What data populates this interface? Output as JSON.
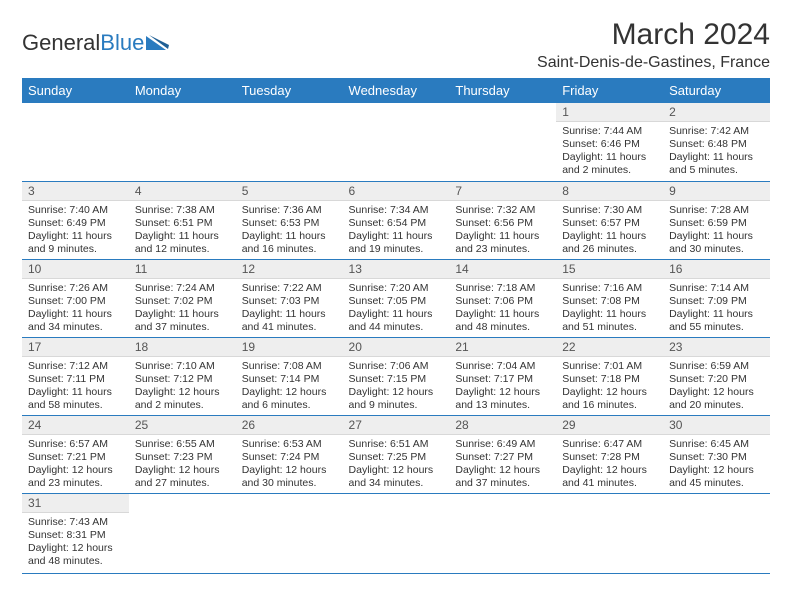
{
  "logo": {
    "general": "General",
    "blue": "Blue"
  },
  "header": {
    "month_title": "March 2024",
    "location": "Saint-Denis-de-Gastines, France"
  },
  "colors": {
    "header_bg": "#2a7bbf",
    "header_text": "#ffffff",
    "daynum_bg": "#eeeeee",
    "cell_border": "#2a7bbf",
    "text": "#333333"
  },
  "typography": {
    "title_fontsize_pt": 22,
    "location_fontsize_pt": 12,
    "dayhead_fontsize_pt": 10,
    "cell_fontsize_pt": 8
  },
  "calendar": {
    "type": "table",
    "day_headers": [
      "Sunday",
      "Monday",
      "Tuesday",
      "Wednesday",
      "Thursday",
      "Friday",
      "Saturday"
    ],
    "weeks": [
      [
        null,
        null,
        null,
        null,
        null,
        {
          "n": "1",
          "sunrise": "7:44 AM",
          "sunset": "6:46 PM",
          "day_h": 11,
          "day_m": 2
        },
        {
          "n": "2",
          "sunrise": "7:42 AM",
          "sunset": "6:48 PM",
          "day_h": 11,
          "day_m": 5
        }
      ],
      [
        {
          "n": "3",
          "sunrise": "7:40 AM",
          "sunset": "6:49 PM",
          "day_h": 11,
          "day_m": 9
        },
        {
          "n": "4",
          "sunrise": "7:38 AM",
          "sunset": "6:51 PM",
          "day_h": 11,
          "day_m": 12
        },
        {
          "n": "5",
          "sunrise": "7:36 AM",
          "sunset": "6:53 PM",
          "day_h": 11,
          "day_m": 16
        },
        {
          "n": "6",
          "sunrise": "7:34 AM",
          "sunset": "6:54 PM",
          "day_h": 11,
          "day_m": 19
        },
        {
          "n": "7",
          "sunrise": "7:32 AM",
          "sunset": "6:56 PM",
          "day_h": 11,
          "day_m": 23
        },
        {
          "n": "8",
          "sunrise": "7:30 AM",
          "sunset": "6:57 PM",
          "day_h": 11,
          "day_m": 26
        },
        {
          "n": "9",
          "sunrise": "7:28 AM",
          "sunset": "6:59 PM",
          "day_h": 11,
          "day_m": 30
        }
      ],
      [
        {
          "n": "10",
          "sunrise": "7:26 AM",
          "sunset": "7:00 PM",
          "day_h": 11,
          "day_m": 34
        },
        {
          "n": "11",
          "sunrise": "7:24 AM",
          "sunset": "7:02 PM",
          "day_h": 11,
          "day_m": 37
        },
        {
          "n": "12",
          "sunrise": "7:22 AM",
          "sunset": "7:03 PM",
          "day_h": 11,
          "day_m": 41
        },
        {
          "n": "13",
          "sunrise": "7:20 AM",
          "sunset": "7:05 PM",
          "day_h": 11,
          "day_m": 44
        },
        {
          "n": "14",
          "sunrise": "7:18 AM",
          "sunset": "7:06 PM",
          "day_h": 11,
          "day_m": 48
        },
        {
          "n": "15",
          "sunrise": "7:16 AM",
          "sunset": "7:08 PM",
          "day_h": 11,
          "day_m": 51
        },
        {
          "n": "16",
          "sunrise": "7:14 AM",
          "sunset": "7:09 PM",
          "day_h": 11,
          "day_m": 55
        }
      ],
      [
        {
          "n": "17",
          "sunrise": "7:12 AM",
          "sunset": "7:11 PM",
          "day_h": 11,
          "day_m": 58
        },
        {
          "n": "18",
          "sunrise": "7:10 AM",
          "sunset": "7:12 PM",
          "day_h": 12,
          "day_m": 2
        },
        {
          "n": "19",
          "sunrise": "7:08 AM",
          "sunset": "7:14 PM",
          "day_h": 12,
          "day_m": 6
        },
        {
          "n": "20",
          "sunrise": "7:06 AM",
          "sunset": "7:15 PM",
          "day_h": 12,
          "day_m": 9
        },
        {
          "n": "21",
          "sunrise": "7:04 AM",
          "sunset": "7:17 PM",
          "day_h": 12,
          "day_m": 13
        },
        {
          "n": "22",
          "sunrise": "7:01 AM",
          "sunset": "7:18 PM",
          "day_h": 12,
          "day_m": 16
        },
        {
          "n": "23",
          "sunrise": "6:59 AM",
          "sunset": "7:20 PM",
          "day_h": 12,
          "day_m": 20
        }
      ],
      [
        {
          "n": "24",
          "sunrise": "6:57 AM",
          "sunset": "7:21 PM",
          "day_h": 12,
          "day_m": 23
        },
        {
          "n": "25",
          "sunrise": "6:55 AM",
          "sunset": "7:23 PM",
          "day_h": 12,
          "day_m": 27
        },
        {
          "n": "26",
          "sunrise": "6:53 AM",
          "sunset": "7:24 PM",
          "day_h": 12,
          "day_m": 30
        },
        {
          "n": "27",
          "sunrise": "6:51 AM",
          "sunset": "7:25 PM",
          "day_h": 12,
          "day_m": 34
        },
        {
          "n": "28",
          "sunrise": "6:49 AM",
          "sunset": "7:27 PM",
          "day_h": 12,
          "day_m": 37
        },
        {
          "n": "29",
          "sunrise": "6:47 AM",
          "sunset": "7:28 PM",
          "day_h": 12,
          "day_m": 41
        },
        {
          "n": "30",
          "sunrise": "6:45 AM",
          "sunset": "7:30 PM",
          "day_h": 12,
          "day_m": 45
        }
      ],
      [
        {
          "n": "31",
          "sunrise": "7:43 AM",
          "sunset": "8:31 PM",
          "day_h": 12,
          "day_m": 48
        },
        null,
        null,
        null,
        null,
        null,
        null
      ]
    ]
  }
}
